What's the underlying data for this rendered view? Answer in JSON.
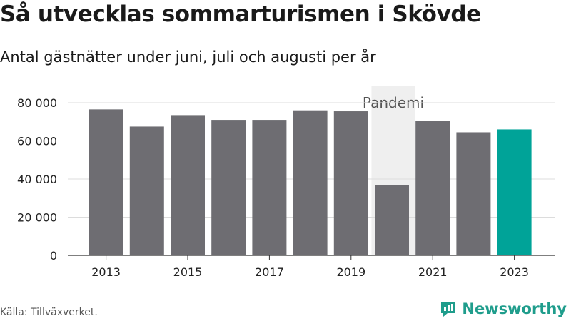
{
  "header": {
    "title": "Så utvecklas sommarturismen i Skövde",
    "subtitle": "Antal gästnätter under juni, juli och augusti per år"
  },
  "footer": {
    "source": "Källa: Tillväxverket.",
    "brand": "Newsworthy",
    "logo_icon": "newsworthy-logo-icon"
  },
  "colors": {
    "bar": "#6e6d72",
    "highlight": "#00a398",
    "pandemic_band": "#efefef",
    "grid": "#dcdcdc",
    "brand": "#1f9d8c"
  },
  "chart_data": {
    "type": "bar",
    "categories": [
      "2013",
      "2014",
      "2015",
      "2016",
      "2017",
      "2018",
      "2019",
      "2020",
      "2021",
      "2022",
      "2023"
    ],
    "values": [
      76500,
      67500,
      73500,
      71000,
      71000,
      76000,
      75500,
      37000,
      70500,
      64500,
      66000
    ],
    "highlight_category": "2023",
    "x_tick_labels": [
      "2013",
      "2015",
      "2017",
      "2019",
      "2021",
      "2023"
    ],
    "y_ticks": [
      0,
      20000,
      40000,
      60000,
      80000
    ],
    "y_tick_labels": [
      "0",
      "20 000",
      "40 000",
      "60 000",
      "80 000"
    ],
    "ylim": [
      0,
      80000
    ],
    "grid": true,
    "annotation": {
      "label": "Pandemi",
      "span": [
        "2020",
        "2021"
      ]
    }
  }
}
